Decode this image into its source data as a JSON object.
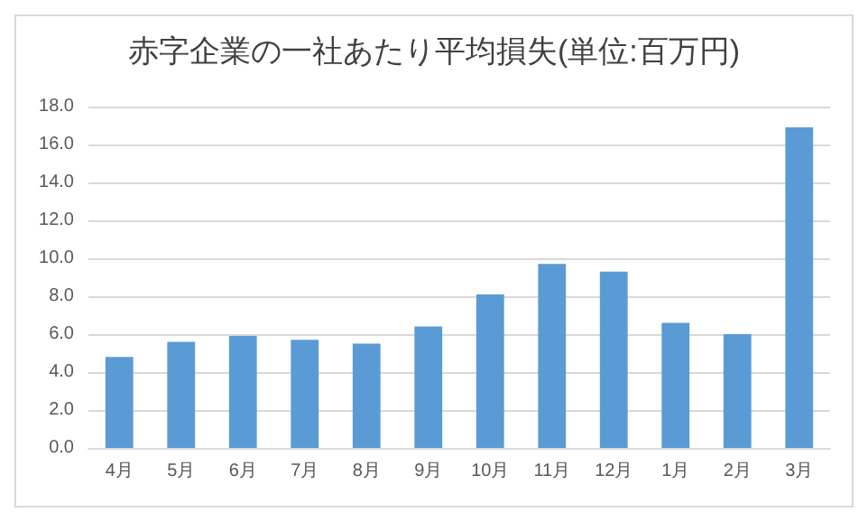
{
  "chart_data": {
    "type": "bar",
    "title": "赤字企業の一社あたり平均損失(単位:百万円)",
    "categories": [
      "4月",
      "5月",
      "6月",
      "7月",
      "8月",
      "9月",
      "10月",
      "11月",
      "12月",
      "1月",
      "2月",
      "3月"
    ],
    "values": [
      4.8,
      5.6,
      5.9,
      5.7,
      5.5,
      6.4,
      8.1,
      9.7,
      9.3,
      6.6,
      6.0,
      16.9
    ],
    "color": "#5b9bd5",
    "ylim": [
      0,
      18
    ],
    "yticks": [
      {
        "value": 0,
        "label": "0.0"
      },
      {
        "value": 2,
        "label": "2.0"
      },
      {
        "value": 4,
        "label": "4.0"
      },
      {
        "value": 6,
        "label": "6.0"
      },
      {
        "value": 8,
        "label": "8.0"
      },
      {
        "value": 10,
        "label": "10.0"
      },
      {
        "value": 12,
        "label": "12.0"
      },
      {
        "value": 14,
        "label": "14.0"
      },
      {
        "value": 16,
        "label": "16.0"
      },
      {
        "value": 18,
        "label": "18.0"
      }
    ],
    "grid": true
  }
}
